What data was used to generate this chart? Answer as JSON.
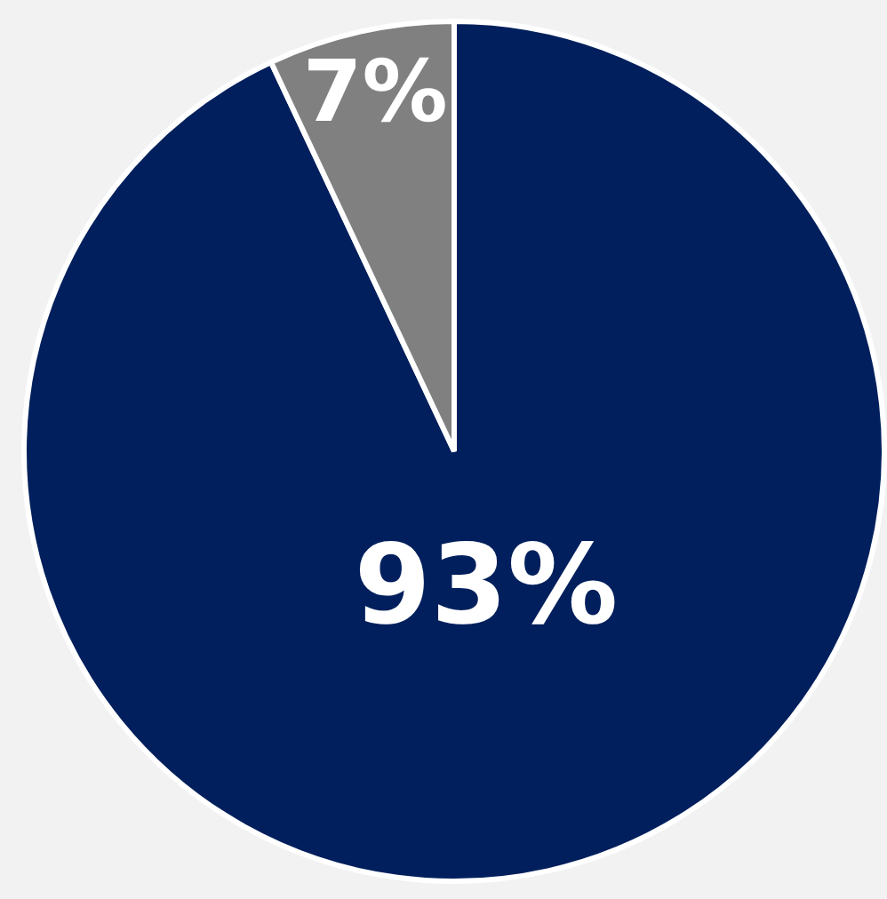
{
  "chart_data": {
    "type": "pie",
    "categories": [
      null,
      null
    ],
    "values": [
      93,
      7
    ],
    "colors": [
      "#001f5c",
      "#808080"
    ],
    "value_labels": [
      "93%",
      "7%"
    ],
    "legend": false
  }
}
